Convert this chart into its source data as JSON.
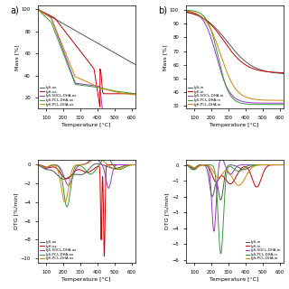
{
  "tg_a_labels": [
    "IgS-ox",
    "IgH-ox",
    "IgS-SOCl₂-DHA-ox",
    "IgS-PCl₅-DHA-ox",
    "IgH-PCl₅-DHA-ox"
  ],
  "tg_a_colors": [
    "#555555",
    "#cc0000",
    "#9933cc",
    "#339933",
    "#cc8800"
  ],
  "tg_b_labels": [
    "IgS-in",
    "IgH-in",
    "IgS-SOCl₂-DHA-in",
    "IgS-PCl₅-DHA-in",
    "IgH-PCl₅-DHA-in"
  ],
  "tg_b_colors": [
    "#555555",
    "#cc0000",
    "#9933cc",
    "#339933",
    "#cc8800"
  ],
  "dtg_a_labels": [
    "IgS-ox",
    "IgH-ox",
    "IgS-SOCl₂-DHA-ox",
    "IgS-PCl₅-DHA-ox",
    "IgH-PCl₅-DHA-ox"
  ],
  "dtg_a_colors": [
    "#555555",
    "#cc0000",
    "#9933cc",
    "#339933",
    "#cc8800"
  ],
  "dtg_b_labels": [
    "IgS-in",
    "IgH-in",
    "IgS-SOCl₂-DHA-in",
    "IgS-PCl₅-DHA-in",
    "IgH-PCl₅-DHA-in"
  ],
  "dtg_b_colors": [
    "#555555",
    "#cc0000",
    "#9933cc",
    "#339933",
    "#cc8800"
  ],
  "temp_range": [
    50,
    620
  ],
  "tg_a_yticks": [
    20,
    40,
    60,
    80,
    100
  ],
  "tg_a_ylim": [
    10,
    103
  ],
  "tg_b_yticks": [
    30,
    40,
    50,
    60,
    70,
    80,
    90,
    100
  ],
  "tg_b_ylim": [
    28,
    103
  ],
  "dtg_a_yticks": [
    0,
    -2,
    -4,
    -6,
    -8,
    -10
  ],
  "dtg_a_ylim": [
    -10.5,
    0.5
  ],
  "dtg_b_yticks": [
    0,
    -1,
    -2,
    -3,
    -4,
    -5,
    -6
  ],
  "dtg_b_ylim": [
    -6.2,
    0.3
  ],
  "xlabel": "Temperature [°C]",
  "tg_ylabel": "Mass [%]",
  "dtg_ylabel": "DTG [%/min]",
  "background": "#ffffff",
  "label_a": "a)",
  "label_b": "b)"
}
